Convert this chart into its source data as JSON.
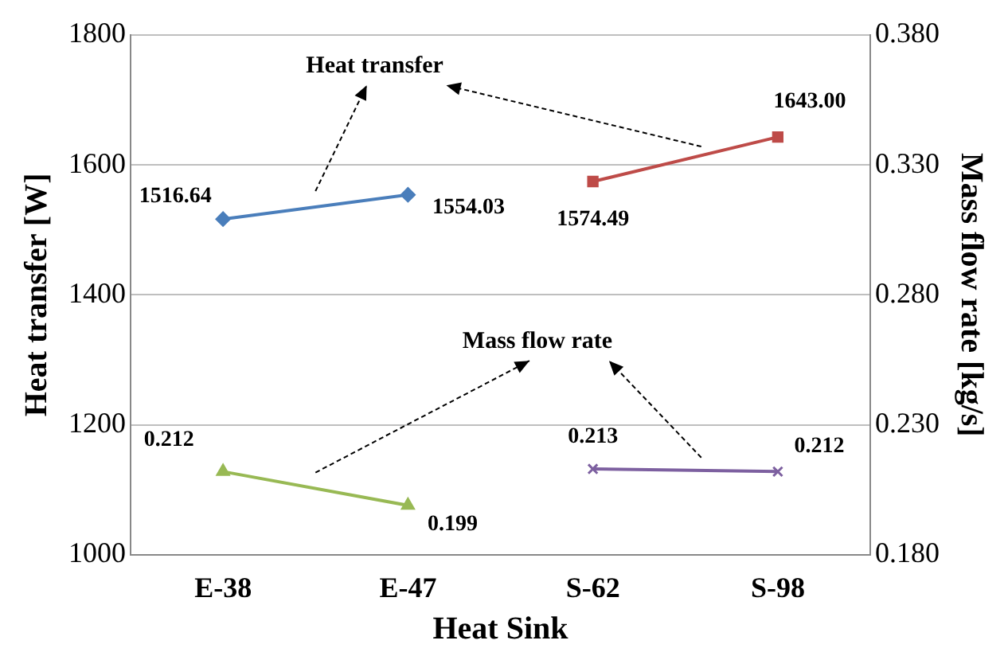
{
  "chart_data": {
    "type": "line",
    "xlabel": "Heat Sink",
    "ylabel": "Heat transfer [W]",
    "y2label": "Mass flow rate [kg/s]",
    "categories": [
      "E-38",
      "E-47",
      "S-62",
      "S-98"
    ],
    "series": [
      {
        "color": "#4a7ebb",
        "marker": "diamond",
        "values": [
          1516.64,
          1554.03,
          null,
          null
        ],
        "value_labels": [
          "1516.64",
          "1554.03",
          null,
          null
        ]
      },
      {
        "color": "#be4b48",
        "marker": "square",
        "values": [
          null,
          null,
          1574.49,
          1643.0
        ],
        "value_labels": [
          null,
          null,
          "1574.49",
          "1643.00"
        ]
      },
      {
        "color": "#98b954",
        "marker": "triangle",
        "axis": "y2",
        "values": [
          0.212,
          0.199,
          null,
          null
        ],
        "value_labels": [
          "0.212",
          "0.199",
          null,
          null
        ]
      },
      {
        "color": "#7d60a0",
        "marker": "cross",
        "axis": "y2",
        "values": [
          null,
          null,
          0.213,
          0.212
        ],
        "value_labels": [
          null,
          null,
          "0.213",
          "0.212"
        ]
      }
    ],
    "ylim": [
      1000,
      1800
    ],
    "yticks": [
      1000,
      1200,
      1400,
      1600,
      1800
    ],
    "y2lim": [
      0.18,
      0.38
    ],
    "y2ticks": [
      {
        "value": 0.18,
        "label": "0.180"
      },
      {
        "value": 0.23,
        "label": "0.230"
      },
      {
        "value": 0.28,
        "label": "0.280"
      },
      {
        "value": 0.33,
        "label": "0.330"
      },
      {
        "value": 0.38,
        "label": "0.380"
      }
    ],
    "annotations": [
      "Heat transfer",
      "Mass flow rate"
    ],
    "grid": "y",
    "legend": false,
    "line_style": "solid"
  }
}
